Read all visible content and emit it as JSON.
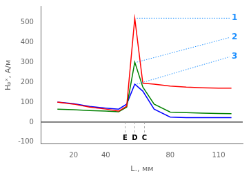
{
  "chart_data": {
    "type": "line",
    "xlabel": "L., мм",
    "ylabel": "Hₚˣ, А/м",
    "x": [
      10,
      20,
      30,
      40,
      48,
      53,
      58,
      63,
      70,
      80,
      90,
      100,
      110,
      118
    ],
    "series": [
      {
        "name": "1",
        "color": "#ff0000",
        "values": [
          100,
          90,
          75,
          65,
          55,
          80,
          520,
          195,
          190,
          180,
          175,
          172,
          170,
          170
        ]
      },
      {
        "name": "2",
        "color": "#008000",
        "values": [
          65,
          62,
          58,
          55,
          52,
          75,
          300,
          175,
          90,
          50,
          47,
          45,
          43,
          42
        ]
      },
      {
        "name": "3",
        "color": "#0000ff",
        "values": [
          100,
          92,
          78,
          70,
          65,
          90,
          190,
          155,
          65,
          25,
          22,
          22,
          22,
          22
        ]
      }
    ],
    "xlim": [
      0,
      125
    ],
    "ylim": [
      -110,
      580
    ],
    "xticks": [
      20,
      40,
      80,
      110
    ],
    "yticks": [
      -100,
      0,
      100,
      200,
      300,
      400,
      500
    ],
    "grid": false,
    "annotations": [
      {
        "text": "E",
        "x": 52
      },
      {
        "text": "D",
        "x": 58
      },
      {
        "text": "C",
        "x": 64
      }
    ]
  }
}
